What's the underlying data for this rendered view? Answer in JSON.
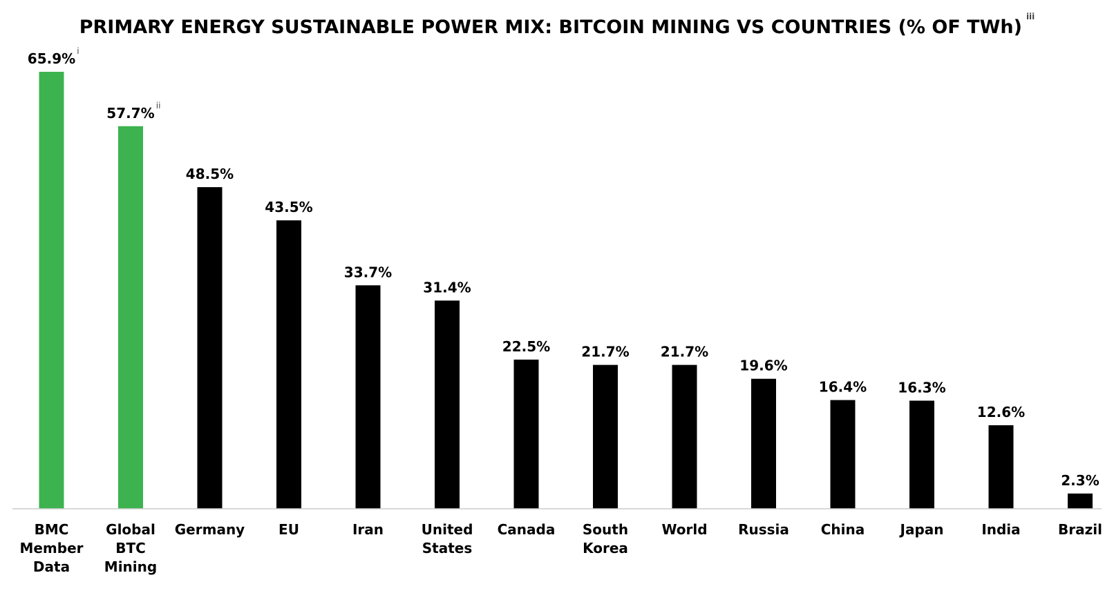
{
  "chart_data": {
    "type": "bar",
    "title": "PRIMARY ENERGY SUSTAINABLE POWER MIX: BITCOIN MINING VS COUNTRIES (% OF TWh)",
    "title_footnote": "iii",
    "xlabel": "",
    "ylabel": "",
    "ylim": [
      0,
      70
    ],
    "grid": false,
    "legend": "none",
    "colors": {
      "bitcoin": "#3cb34f",
      "country": "#000000",
      "axis": "#cccccc"
    },
    "categories": [
      {
        "label": "BMC Member Data",
        "lines": [
          "BMC",
          "Member",
          "Data"
        ],
        "value": 65.9,
        "value_label": "65.9%",
        "footnote": "i",
        "group": "bitcoin"
      },
      {
        "label": "Global BTC Mining",
        "lines": [
          "Global",
          "BTC",
          "Mining"
        ],
        "value": 57.7,
        "value_label": "57.7%",
        "footnote": "ii",
        "group": "bitcoin"
      },
      {
        "label": "Germany",
        "lines": [
          "Germany"
        ],
        "value": 48.5,
        "value_label": "48.5%",
        "footnote": "",
        "group": "country"
      },
      {
        "label": "EU",
        "lines": [
          "EU"
        ],
        "value": 43.5,
        "value_label": "43.5%",
        "footnote": "",
        "group": "country"
      },
      {
        "label": "Iran",
        "lines": [
          "Iran"
        ],
        "value": 33.7,
        "value_label": "33.7%",
        "footnote": "",
        "group": "country"
      },
      {
        "label": "United States",
        "lines": [
          "United",
          "States"
        ],
        "value": 31.4,
        "value_label": "31.4%",
        "footnote": "",
        "group": "country"
      },
      {
        "label": "Canada",
        "lines": [
          "Canada"
        ],
        "value": 22.5,
        "value_label": "22.5%",
        "footnote": "",
        "group": "country"
      },
      {
        "label": "South Korea",
        "lines": [
          "South",
          "Korea"
        ],
        "value": 21.7,
        "value_label": "21.7%",
        "footnote": "",
        "group": "country"
      },
      {
        "label": "World",
        "lines": [
          "World"
        ],
        "value": 21.7,
        "value_label": "21.7%",
        "footnote": "",
        "group": "country"
      },
      {
        "label": "Russia",
        "lines": [
          "Russia"
        ],
        "value": 19.6,
        "value_label": "19.6%",
        "footnote": "",
        "group": "country"
      },
      {
        "label": "China",
        "lines": [
          "China"
        ],
        "value": 16.4,
        "value_label": "16.4%",
        "footnote": "",
        "group": "country"
      },
      {
        "label": "Japan",
        "lines": [
          "Japan"
        ],
        "value": 16.3,
        "value_label": "16.3%",
        "footnote": "",
        "group": "country"
      },
      {
        "label": "India",
        "lines": [
          "India"
        ],
        "value": 12.6,
        "value_label": "12.6%",
        "footnote": "",
        "group": "country"
      },
      {
        "label": "Brazil",
        "lines": [
          "Brazil"
        ],
        "value": 2.3,
        "value_label": "2.3%",
        "footnote": "",
        "group": "country"
      }
    ]
  }
}
